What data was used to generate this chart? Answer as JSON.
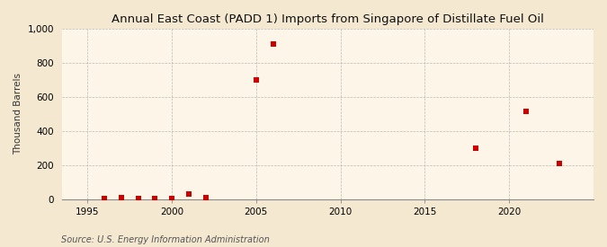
{
  "title": "Annual East Coast (PADD 1) Imports from Singapore of Distillate Fuel Oil",
  "ylabel": "Thousand Barrels",
  "source": "Source: U.S. Energy Information Administration",
  "background_color": "#f5e8d0",
  "plot_background_color": "#fdf6e8",
  "marker_color": "#cc0000",
  "marker_size": 4,
  "xlim": [
    1993.5,
    2025
  ],
  "ylim": [
    0,
    1000
  ],
  "yticks": [
    0,
    200,
    400,
    600,
    800,
    1000
  ],
  "xticks": [
    1995,
    2000,
    2005,
    2010,
    2015,
    2020
  ],
  "data": [
    [
      1996,
      5
    ],
    [
      1997,
      10
    ],
    [
      1998,
      5
    ],
    [
      1999,
      3
    ],
    [
      2000,
      3
    ],
    [
      2001,
      28
    ],
    [
      2002,
      10
    ],
    [
      2005,
      700
    ],
    [
      2006,
      912
    ],
    [
      2018,
      300
    ],
    [
      2021,
      516
    ],
    [
      2023,
      207
    ]
  ]
}
